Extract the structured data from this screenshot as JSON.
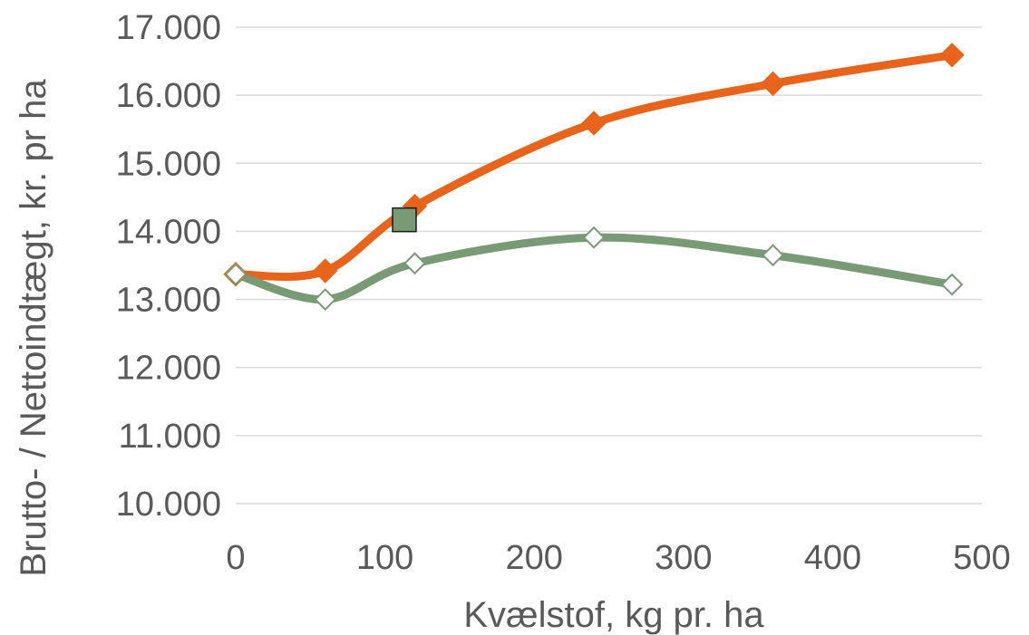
{
  "chart_data": {
    "type": "line",
    "xlabel": "Kvælstof, kg pr. ha",
    "ylabel": "Brutto- / Nettoindtægt, kr. pr ha",
    "xlim": [
      0,
      500
    ],
    "ylim": [
      10000,
      17000
    ],
    "x_ticks": [
      0,
      100,
      200,
      300,
      400,
      500
    ],
    "x_tick_labels": [
      "0",
      "100",
      "200",
      "300",
      "400",
      "500"
    ],
    "y_ticks": [
      10000,
      11000,
      12000,
      13000,
      14000,
      15000,
      16000,
      17000
    ],
    "y_tick_labels": [
      "10.000",
      "11.000",
      "12.000",
      "13.000",
      "14.000",
      "15.000",
      "16.000",
      "17.000"
    ],
    "grid": "horizontal",
    "legend": "none",
    "series": [
      {
        "color": "#e8641b",
        "marker": "filled-diamond",
        "smooth": true,
        "x": [
          0,
          60,
          120,
          240,
          360,
          480
        ],
        "y": [
          13370,
          13420,
          14370,
          15590,
          16170,
          16590
        ]
      },
      {
        "color": "#789a75",
        "marker": "open-diamond",
        "smooth": true,
        "x": [
          0,
          60,
          120,
          240,
          360,
          480
        ],
        "y": [
          13370,
          13000,
          13530,
          13910,
          13650,
          13220
        ]
      }
    ],
    "annotations": [
      {
        "marker": "square",
        "color": "#789a75",
        "x": 113,
        "y": 14170
      }
    ]
  }
}
